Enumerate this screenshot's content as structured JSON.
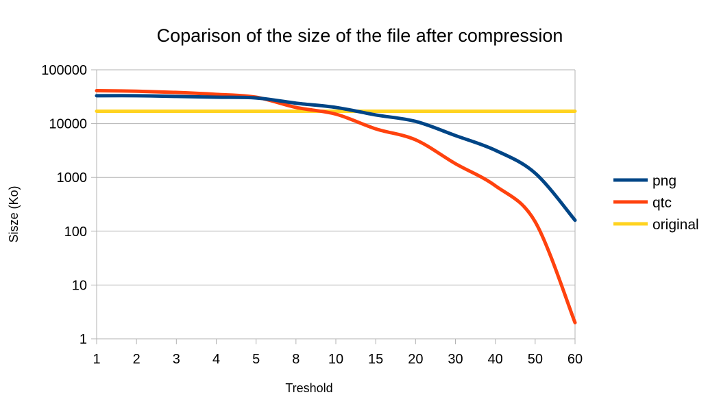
{
  "chart_data": {
    "type": "line",
    "title": "Coparison of the size of the file after compression",
    "xlabel": "Treshold",
    "ylabel": "Sisze (Ko)",
    "y_scale": "log",
    "ylim": [
      1,
      100000
    ],
    "y_ticks": [
      "1",
      "10",
      "100",
      "1000",
      "10000",
      "100000"
    ],
    "categories": [
      "1",
      "2",
      "3",
      "4",
      "5",
      "8",
      "10",
      "15",
      "20",
      "30",
      "40",
      "50",
      "60"
    ],
    "grid": "horizontal",
    "legend_position": "right",
    "series": [
      {
        "name": "png",
        "color": "#004586",
        "values": [
          33000,
          33000,
          32000,
          31000,
          30000,
          24000,
          20000,
          14500,
          11000,
          6000,
          3200,
          1200,
          160
        ]
      },
      {
        "name": "qtc",
        "color": "#ff420e",
        "values": [
          41000,
          40000,
          38000,
          35000,
          31000,
          20000,
          15000,
          8000,
          5000,
          1800,
          700,
          150,
          2
        ]
      },
      {
        "name": "original",
        "color": "#ffd320",
        "values": [
          17000,
          17000,
          17000,
          17000,
          17000,
          17000,
          17000,
          17000,
          17000,
          17000,
          17000,
          17000,
          17000
        ]
      }
    ]
  }
}
